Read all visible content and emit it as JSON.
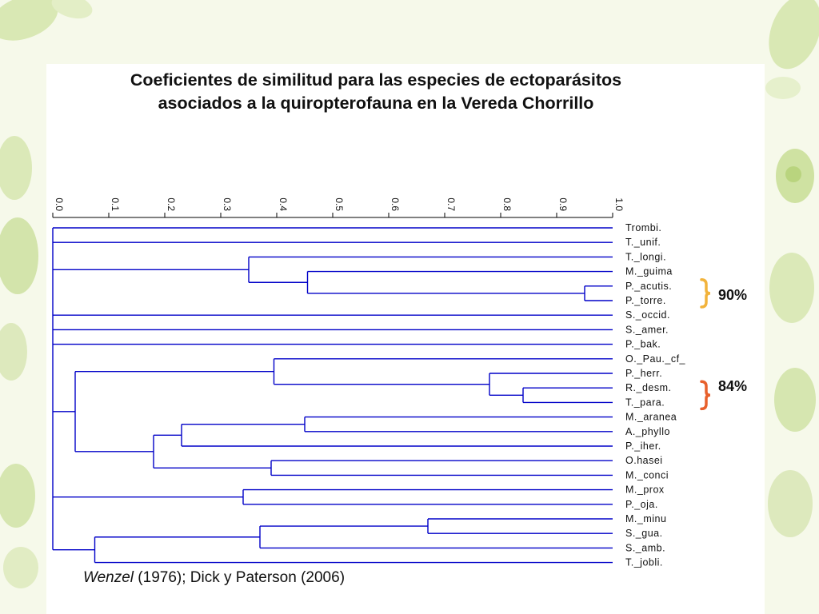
{
  "slide": {
    "title_line1": "Coeficientes de similitud para las especies de ectoparásitos",
    "title_line2": "asociados a la quiropterofauna en la Vereda Chorrillo",
    "source_author": "Wenzel",
    "source_rest": " (1976); Dick y Paterson (2006)",
    "annotations": [
      {
        "text": "90%",
        "bracket_color": "#f2b33b"
      },
      {
        "text": "84%",
        "bracket_color": "#e8602c"
      }
    ]
  },
  "colors": {
    "tree_line": "#0000c8",
    "axis": "#000000",
    "background": "#f6f9ea",
    "leaf_decoration": "#cfe3a4"
  },
  "chart_data": {
    "type": "dendrogram",
    "orientation": "horizontal",
    "axis_position": "top",
    "xlim": [
      0,
      1.0
    ],
    "ticks": [
      "0.0",
      "0.1",
      "0.2",
      "0.3",
      "0.4",
      "0.5",
      "0.6",
      "0.7",
      "0.8",
      "0.9",
      "1.0"
    ],
    "leaves": [
      "Trombi.",
      "T._unif.",
      "T._longi.",
      "M._guima",
      "P._acutis.",
      "P._torre.",
      "S._occid.",
      "S._amer.",
      "P._bak.",
      "O._Pau._cf_",
      "P._herr.",
      "R._desm.",
      "T._para.",
      "M._aranea",
      "A._phyllo",
      "P._iher.",
      "O.hasei",
      "M._conci",
      "M._prox",
      "P._oja.",
      "M._minu",
      "S._gua.",
      "S._amb.",
      "T._jobli."
    ],
    "merges": [
      {
        "id": "n1",
        "children": [
          "P._acutis.",
          "P._torre."
        ],
        "similarity": 0.95
      },
      {
        "id": "n2",
        "children": [
          "M._guima",
          "n1"
        ],
        "similarity": 0.455
      },
      {
        "id": "n3",
        "children": [
          "T._longi.",
          "n2"
        ],
        "similarity": 0.35
      },
      {
        "id": "n4",
        "children": [
          "R._desm.",
          "T._para."
        ],
        "similarity": 0.84
      },
      {
        "id": "n5",
        "children": [
          "P._herr.",
          "n4"
        ],
        "similarity": 0.78
      },
      {
        "id": "n6",
        "children": [
          "O._Pau._cf_",
          "n5"
        ],
        "similarity": 0.395
      },
      {
        "id": "n7",
        "children": [
          "M._aranea",
          "A._phyllo"
        ],
        "similarity": 0.45
      },
      {
        "id": "n8",
        "children": [
          "n7",
          "P._iher."
        ],
        "similarity": 0.23
      },
      {
        "id": "n9",
        "children": [
          "O.hasei",
          "M._conci"
        ],
        "similarity": 0.39
      },
      {
        "id": "n10",
        "children": [
          "n8",
          "n9"
        ],
        "similarity": 0.18
      },
      {
        "id": "n11",
        "children": [
          "n6",
          "n10"
        ],
        "similarity": 0.04
      },
      {
        "id": "n12",
        "children": [
          "M._prox",
          "P._oja."
        ],
        "similarity": 0.34
      },
      {
        "id": "n13",
        "children": [
          "M._minu",
          "S._gua."
        ],
        "similarity": 0.67
      },
      {
        "id": "n14",
        "children": [
          "n13",
          "S._amb."
        ],
        "similarity": 0.37
      },
      {
        "id": "n15",
        "children": [
          "n14",
          "T._jobli."
        ],
        "similarity": 0.075
      },
      {
        "id": "root",
        "children": [
          "Trombi.",
          "T._unif.",
          "n3",
          "S._occid.",
          "S._amer.",
          "P._bak.",
          "n11",
          "n12",
          "n15"
        ],
        "similarity": 0.0
      }
    ]
  }
}
